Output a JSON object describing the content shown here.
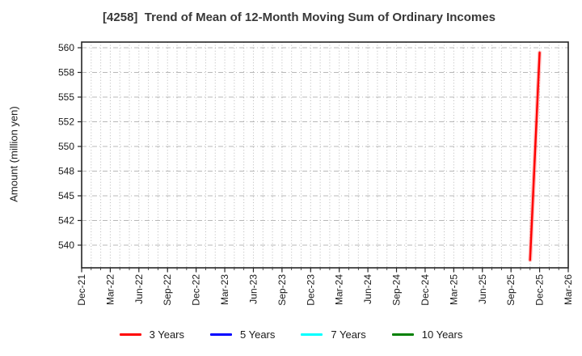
{
  "window": {
    "background_color": "#ffffff",
    "text_color": "#1a1a1a"
  },
  "chart_data": {
    "type": "line",
    "title": "[4258]  Trend of Mean of 12-Month Moving Sum of Ordinary Incomes",
    "ylabel": "Amount (million yen)",
    "xlabel": "",
    "grid": true,
    "legend_position": "bottom",
    "y_ticks": [
      540,
      542,
      545,
      548,
      550,
      552,
      555,
      558,
      560
    ],
    "ylim_approx": [
      538.2,
      560.5
    ],
    "x_tick_labels": [
      "Dec-21",
      "Mar-22",
      "Jun-22",
      "Sep-22",
      "Dec-22",
      "Mar-23",
      "Jun-23",
      "Sep-23",
      "Dec-23",
      "Mar-24",
      "Jun-24",
      "Sep-24",
      "Dec-24",
      "Mar-25",
      "Jun-25",
      "Sep-25",
      "Dec-25",
      "Mar-26"
    ],
    "x_major_interval_months": 3,
    "x_minor_interval_months": 1,
    "x_total_months": 51,
    "series": [
      {
        "name": "3 Years",
        "color": "#ff0000",
        "points": [
          {
            "label": "Nov-25",
            "month_index": 47,
            "value": 538.8
          },
          {
            "label": "Dec-25",
            "month_index": 48,
            "value": 559.6
          }
        ]
      },
      {
        "name": "5 Years",
        "color": "#0000ff",
        "points": []
      },
      {
        "name": "7 Years",
        "color": "#00ffff",
        "points": []
      },
      {
        "name": "10 Years",
        "color": "#008000",
        "points": []
      }
    ]
  }
}
